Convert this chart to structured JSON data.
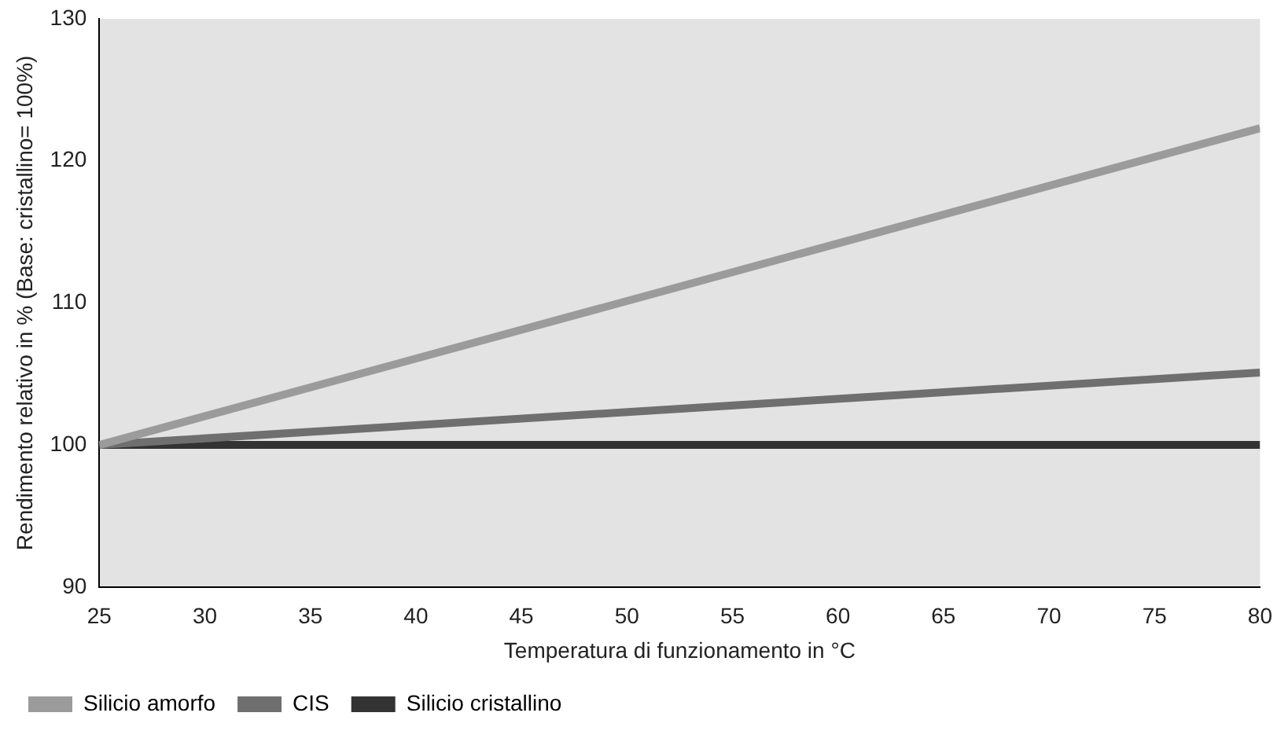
{
  "chart_data": {
    "type": "line",
    "xlabel": "Temperatura di funzionamento in °C",
    "ylabel": "Rendimento relativo in % (Base: cristallino= 100%)",
    "x": [
      25,
      80
    ],
    "xlim": [
      25,
      80
    ],
    "xticks": [
      25,
      30,
      35,
      40,
      45,
      50,
      55,
      60,
      65,
      70,
      75,
      80
    ],
    "ylim": [
      90,
      130
    ],
    "yticks": [
      90,
      100,
      110,
      120,
      130
    ],
    "grid": false,
    "legend": "bottom",
    "marker": "none",
    "line_style": "solid",
    "series": [
      {
        "name": "Silicio amorfo",
        "color": "#9b9b9b",
        "values": [
          100,
          122.3
        ]
      },
      {
        "name": "CIS",
        "color": "#6f6f6f",
        "values": [
          100,
          105.1
        ]
      },
      {
        "name": "Silicio cristallino",
        "color": "#333333",
        "values": [
          100,
          100
        ]
      }
    ]
  }
}
